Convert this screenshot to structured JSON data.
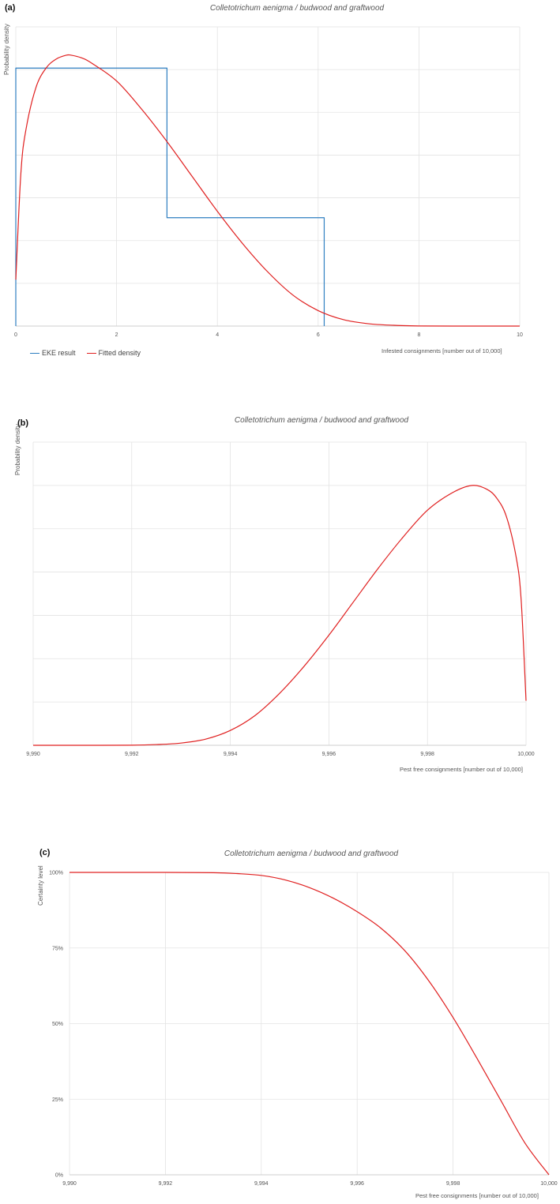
{
  "chart_data": [
    {
      "panel_label": "(a)",
      "type": "line",
      "title": "Colletotrichum aenigma / budwood and graftwood",
      "xlabel": "Infested consignments [number out of 10,000]",
      "ylabel": "Probability density",
      "xlim": [
        0,
        10
      ],
      "x_ticks": [
        "0",
        "2",
        "4",
        "6",
        "8",
        "10"
      ],
      "grid": true,
      "legend_position": "bottom-left",
      "series": [
        {
          "name": "EKE result",
          "color": "#2f7fc1",
          "shape": "step",
          "x": [
            0,
            0,
            3,
            3,
            6.12,
            6.12
          ],
          "y": [
            0,
            0.2,
            0.2,
            0.084,
            0.084,
            0
          ]
        },
        {
          "name": "Fitted density",
          "color": "#e02020",
          "shape": "smooth",
          "x": [
            0,
            0.1,
            0.2,
            0.4,
            0.6,
            0.8,
            1.0,
            1.1,
            1.3,
            1.5,
            2.0,
            2.5,
            3.0,
            3.5,
            4.0,
            4.5,
            5.0,
            5.5,
            6.0,
            6.5,
            7.0,
            7.5,
            8.0,
            9.0,
            10.0
          ],
          "y": [
            0.036,
            0.118,
            0.152,
            0.185,
            0.2,
            0.207,
            0.21,
            0.21,
            0.208,
            0.204,
            0.19,
            0.168,
            0.143,
            0.116,
            0.089,
            0.064,
            0.042,
            0.024,
            0.012,
            0.005,
            0.0018,
            0.0006,
            0.0001,
            0,
            0
          ]
        }
      ]
    },
    {
      "panel_label": "(b)",
      "type": "line",
      "title": "Colletotrichum aenigma / budwood and graftwood",
      "xlabel": "Pest free consignments [number out of 10,000]",
      "ylabel": "Probability density",
      "xlim": [
        9990,
        10000
      ],
      "x_ticks": [
        "9,990",
        "9,992",
        "9,994",
        "9,996",
        "9,998",
        "10,000"
      ],
      "grid": true,
      "series": [
        {
          "name": "",
          "color": "#e02020",
          "x": [
            9990,
            9991,
            9992,
            9992.5,
            9993,
            9993.5,
            9994,
            9994.5,
            9995,
            9995.5,
            9996,
            9996.5,
            9997,
            9997.5,
            9998,
            9998.5,
            9998.9,
            9999.2,
            9999.4,
            9999.6,
            9999.8,
            9999.9,
            10000
          ],
          "y": [
            0,
            0,
            0.0001,
            0.0006,
            0.0018,
            0.005,
            0.012,
            0.024,
            0.042,
            0.064,
            0.089,
            0.116,
            0.143,
            0.168,
            0.19,
            0.204,
            0.21,
            0.207,
            0.2,
            0.185,
            0.152,
            0.118,
            0.036
          ]
        }
      ]
    },
    {
      "panel_label": "(c)",
      "type": "line",
      "title": "Colletotrichum aenigma / budwood and graftwood",
      "xlabel": "Pest free consignments [number out of 10,000]",
      "ylabel": "Certainty level",
      "xlim": [
        9990,
        10000
      ],
      "ylim": [
        0,
        100
      ],
      "x_ticks": [
        "9,990",
        "9,992",
        "9,994",
        "9,996",
        "9,998",
        "10,000"
      ],
      "y_ticks": [
        "0%",
        "25%",
        "50%",
        "75%",
        "100%"
      ],
      "grid": true,
      "series": [
        {
          "name": "",
          "color": "#e02020",
          "x": [
            9990,
            9992,
            9993,
            9993.5,
            9994,
            9994.5,
            9995,
            9995.5,
            9996,
            9996.5,
            9997,
            9997.5,
            9998,
            9998.5,
            9999,
            9999.5,
            10000
          ],
          "y": [
            100,
            100,
            99.9,
            99.6,
            99.0,
            97.5,
            95.0,
            91.5,
            87.0,
            81.5,
            74.0,
            64.0,
            52.0,
            38.5,
            24.5,
            10.5,
            0
          ]
        }
      ]
    }
  ]
}
